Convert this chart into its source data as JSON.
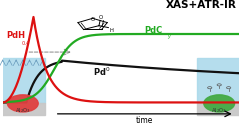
{
  "title": "XAS+ATR-IR",
  "title_fontsize": 8,
  "xlabel": "time",
  "bg_color": "#ffffff",
  "red_color": "#dd1111",
  "green_color": "#22aa22",
  "black_color": "#111111",
  "gray_color": "#888888",
  "water_color": "#a8d8ea",
  "al2o3_color": "#c8c8c8",
  "particle_left_color": "#e04040",
  "particle_right_color": "#44aa44",
  "xlim": [
    0,
    1
  ],
  "ylim": [
    -0.15,
    1.05
  ]
}
